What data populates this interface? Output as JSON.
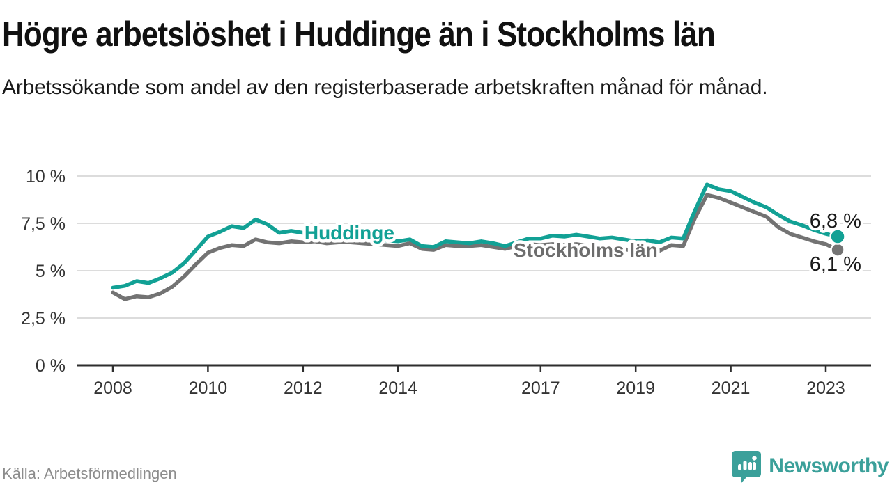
{
  "colors": {
    "huddinge_teal": "#12a195",
    "stockholm_gray": "#737373",
    "grid": "#dcdcdc",
    "axis": "#2e2e2e",
    "text_dark": "#1a1a1a",
    "brand_teal": "#3ba09a",
    "source_gray": "#8c8c8c"
  },
  "footer": {
    "source": "Källa: Arbetsförmedlingen",
    "brand": "Newsworthy",
    "logo_icon": "speech-bubble-bar-chart"
  },
  "chart_data": {
    "type": "line",
    "title": "Högre arbetslöshet i Huddinge än i Stockholms län",
    "subtitle": "Arbetssökande som andel av den registerbaserade arbetskraften månad för månad.",
    "grid": "horizontal",
    "legend_position": "inline-labels-on-lines",
    "xlim": [
      2007.2,
      2023.95
    ],
    "ylim": [
      0,
      10
    ],
    "x_start": 2008.0,
    "x_step": 0.25,
    "x_ticks": [
      {
        "value": 2008,
        "label": "2008"
      },
      {
        "value": 2010,
        "label": "2010"
      },
      {
        "value": 2012,
        "label": "2012"
      },
      {
        "value": 2014,
        "label": "2014"
      },
      {
        "value": 2017,
        "label": "2017"
      },
      {
        "value": 2019,
        "label": "2019"
      },
      {
        "value": 2021,
        "label": "2021"
      },
      {
        "value": 2023,
        "label": "2023"
      }
    ],
    "y_ticks": [
      {
        "value": 0,
        "label": "0 %"
      },
      {
        "value": 2.5,
        "label": "2,5 %"
      },
      {
        "value": 5,
        "label": "5 %"
      },
      {
        "value": 7.5,
        "label": "7,5 %"
      },
      {
        "value": 10,
        "label": "10 %"
      }
    ],
    "series": [
      {
        "name": "Stockholms län",
        "slug": "stockholm",
        "color": "#737373",
        "label_color": "#6d6d6d",
        "label_pos": {
          "x": 2016.43,
          "y": 5.74
        },
        "end_label": "6,1 %",
        "end_label_pos": {
          "x": 2022.66,
          "y": 5.0
        },
        "end_dot_radius": 9.5,
        "values": [
          3.85,
          3.5,
          3.65,
          3.6,
          3.8,
          4.15,
          4.7,
          5.35,
          5.95,
          6.2,
          6.35,
          6.3,
          6.65,
          6.5,
          6.45,
          6.55,
          6.5,
          6.55,
          6.45,
          6.5,
          6.5,
          6.45,
          6.4,
          6.35,
          6.3,
          6.45,
          6.15,
          6.1,
          6.35,
          6.3,
          6.3,
          6.35,
          6.25,
          6.15,
          6.3,
          6.4,
          6.35,
          6.4,
          6.35,
          6.4,
          6.3,
          6.2,
          6.25,
          6.15,
          6.0,
          6.1,
          6.05,
          6.35,
          6.3,
          7.8,
          9.0,
          8.85,
          8.6,
          8.35,
          8.1,
          7.85,
          7.3,
          6.95,
          6.75,
          6.55,
          6.4,
          6.1
        ]
      },
      {
        "name": "Huddinge",
        "slug": "huddinge",
        "color": "#12a195",
        "label_color": "#12a195",
        "label_pos": {
          "x": 2012.03,
          "y": 6.65
        },
        "end_label": "6,8 %",
        "end_label_pos": {
          "x": 2022.66,
          "y": 7.28
        },
        "end_dot_radius": 10.5,
        "values": [
          4.1,
          4.2,
          4.45,
          4.35,
          4.6,
          4.9,
          5.4,
          6.1,
          6.8,
          7.05,
          7.35,
          7.25,
          7.7,
          7.45,
          7.0,
          7.1,
          7.0,
          7.05,
          7.0,
          6.85,
          6.8,
          6.7,
          6.7,
          6.6,
          6.55,
          6.65,
          6.3,
          6.25,
          6.55,
          6.5,
          6.45,
          6.55,
          6.45,
          6.3,
          6.5,
          6.7,
          6.7,
          6.85,
          6.8,
          6.9,
          6.8,
          6.7,
          6.75,
          6.65,
          6.55,
          6.6,
          6.5,
          6.75,
          6.7,
          8.2,
          9.55,
          9.3,
          9.2,
          8.9,
          8.6,
          8.35,
          7.95,
          7.6,
          7.4,
          7.15,
          6.95,
          6.8
        ]
      }
    ]
  }
}
